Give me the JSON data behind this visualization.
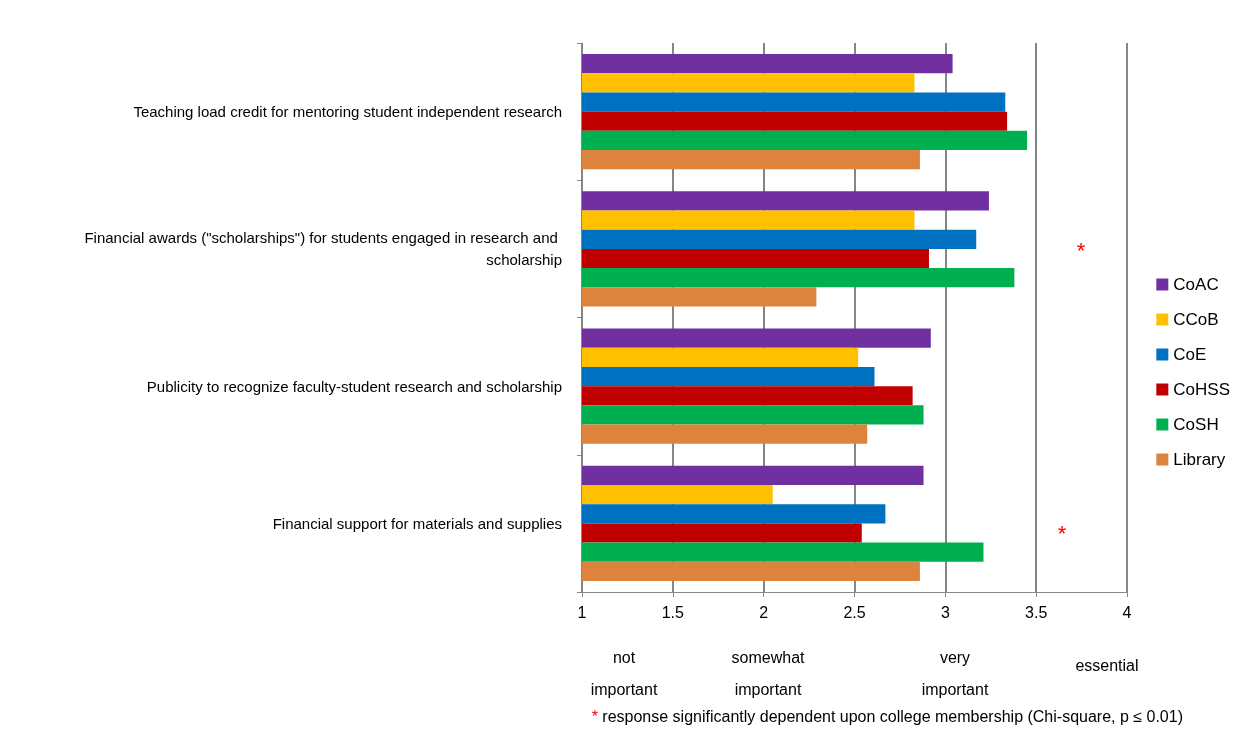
{
  "chart_data": {
    "type": "bar",
    "orientation": "horizontal",
    "categories": [
      "Teaching load credit for mentoring student independent research",
      "Financial awards (\"scholarships\") for students engaged in research and scholarship",
      "Publicity to recognize faculty-student research and scholarship",
      "Financial support for materials and supplies"
    ],
    "series": [
      {
        "name": "CoAC",
        "color": "#7030a0",
        "values": [
          3.04,
          3.24,
          2.92,
          2.88
        ]
      },
      {
        "name": "CCoB",
        "color": "#ffc000",
        "values": [
          2.83,
          2.83,
          2.52,
          2.05
        ]
      },
      {
        "name": "CoE",
        "color": "#0070c0",
        "values": [
          3.33,
          3.17,
          2.61,
          2.67
        ]
      },
      {
        "name": "CoHSS",
        "color": "#c00000",
        "values": [
          3.34,
          2.91,
          2.82,
          2.54
        ]
      },
      {
        "name": "CoSH",
        "color": "#00b050",
        "values": [
          3.45,
          3.38,
          2.88,
          3.21
        ]
      },
      {
        "name": "Library",
        "color": "#dc843e",
        "values": [
          2.86,
          2.29,
          2.57,
          2.86
        ]
      }
    ],
    "xlim": [
      1,
      4
    ],
    "xticks": [
      1,
      1.5,
      2,
      2.5,
      3,
      3.5,
      4
    ],
    "grid": "x",
    "legend": "right",
    "annotations": [
      "*",
      "*",
      "not\nimportant",
      "somewhat\nimportant",
      "very\nimportant",
      "essential",
      "* response significantly dependent upon college membership (Chi-square, p ≤ 0.01)"
    ]
  }
}
